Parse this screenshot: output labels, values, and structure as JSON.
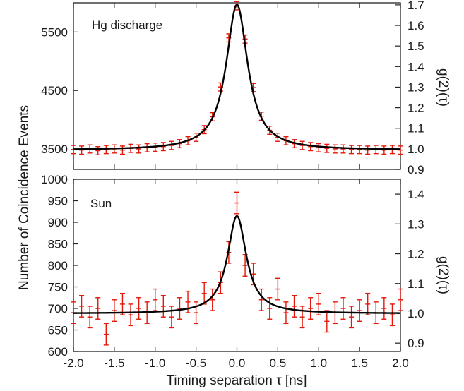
{
  "colors": {
    "data": "#e3170a",
    "fit": "#000000"
  },
  "chart_data": [
    {
      "type": "scatter",
      "panel_label": "Hg discharge",
      "xlim": [
        -2.0,
        2.0
      ],
      "ylim": [
        3150,
        6000
      ],
      "y2lim": [
        0.9,
        1.71
      ],
      "xticks": [],
      "yticks": [
        3500,
        4500,
        5500
      ],
      "y2ticks": [
        "0.9",
        "1.0",
        "1.1",
        "1.2",
        "1.3",
        "1.4",
        "1.5",
        "1.6",
        "1.7"
      ],
      "y2label": "g(2)(τ)",
      "fit": {
        "model": "lorentzian",
        "baseline": 3480,
        "peak": 5970,
        "center": 0.0,
        "hwhm": 0.16
      },
      "series": [
        {
          "role": "data",
          "x": [
            -2.0,
            -1.9,
            -1.8,
            -1.7,
            -1.6,
            -1.5,
            -1.4,
            -1.3,
            -1.2,
            -1.1,
            -1.0,
            -0.9,
            -0.8,
            -0.7,
            -0.6,
            -0.5,
            -0.4,
            -0.3,
            -0.2,
            -0.1,
            0.0,
            0.1,
            0.2,
            0.3,
            0.4,
            0.5,
            0.6,
            0.7,
            0.8,
            0.9,
            1.0,
            1.1,
            1.2,
            1.3,
            1.4,
            1.5,
            1.6,
            1.7,
            1.8,
            1.9,
            2.0
          ],
          "y": [
            3490,
            3480,
            3500,
            3470,
            3490,
            3500,
            3480,
            3510,
            3500,
            3520,
            3530,
            3540,
            3560,
            3590,
            3640,
            3700,
            3830,
            4050,
            4560,
            5400,
            5950,
            5380,
            4550,
            4060,
            3820,
            3700,
            3640,
            3590,
            3560,
            3540,
            3520,
            3510,
            3500,
            3500,
            3490,
            3490,
            3480,
            3490,
            3480,
            3490,
            3480
          ],
          "err": 70
        }
      ]
    },
    {
      "type": "scatter",
      "panel_label": "Sun",
      "xlabel": "Timing separation τ [ns]",
      "xlim": [
        -2.0,
        2.0
      ],
      "ylim": [
        600,
        1000
      ],
      "y2lim": [
        0.872,
        1.45
      ],
      "xticks": [
        "-2.0",
        "-1.5",
        "-1.0",
        "-0.5",
        "0.0",
        "0.5",
        "1.0",
        "1.5",
        "2.0"
      ],
      "yticks": [
        600,
        650,
        700,
        750,
        800,
        850,
        900,
        950,
        1000
      ],
      "y2ticks": [
        "0.9",
        "1.0",
        "1.1",
        "1.2",
        "1.3",
        "1.4"
      ],
      "y2label": "g(2)(τ)",
      "fit": {
        "model": "lorentzian",
        "baseline": 688,
        "peak": 915,
        "center": 0.0,
        "hwhm": 0.14
      },
      "series": [
        {
          "role": "data",
          "x": [
            -2.0,
            -1.9,
            -1.8,
            -1.7,
            -1.6,
            -1.5,
            -1.4,
            -1.3,
            -1.2,
            -1.1,
            -1.0,
            -0.9,
            -0.8,
            -0.7,
            -0.6,
            -0.5,
            -0.4,
            -0.3,
            -0.2,
            -0.1,
            0.0,
            0.1,
            0.2,
            0.3,
            0.4,
            0.5,
            0.6,
            0.7,
            0.8,
            0.9,
            1.0,
            1.1,
            1.2,
            1.3,
            1.4,
            1.5,
            1.6,
            1.7,
            1.8,
            1.9,
            2.0
          ],
          "y": [
            690,
            705,
            680,
            700,
            640,
            695,
            710,
            685,
            700,
            690,
            720,
            705,
            680,
            700,
            715,
            690,
            735,
            720,
            760,
            830,
            945,
            800,
            780,
            720,
            700,
            745,
            690,
            705,
            680,
            700,
            710,
            670,
            690,
            700,
            680,
            695,
            710,
            690,
            700,
            685,
            720
          ],
          "err": 25
        }
      ]
    }
  ],
  "ylabel": "Number of Coincidence Events"
}
